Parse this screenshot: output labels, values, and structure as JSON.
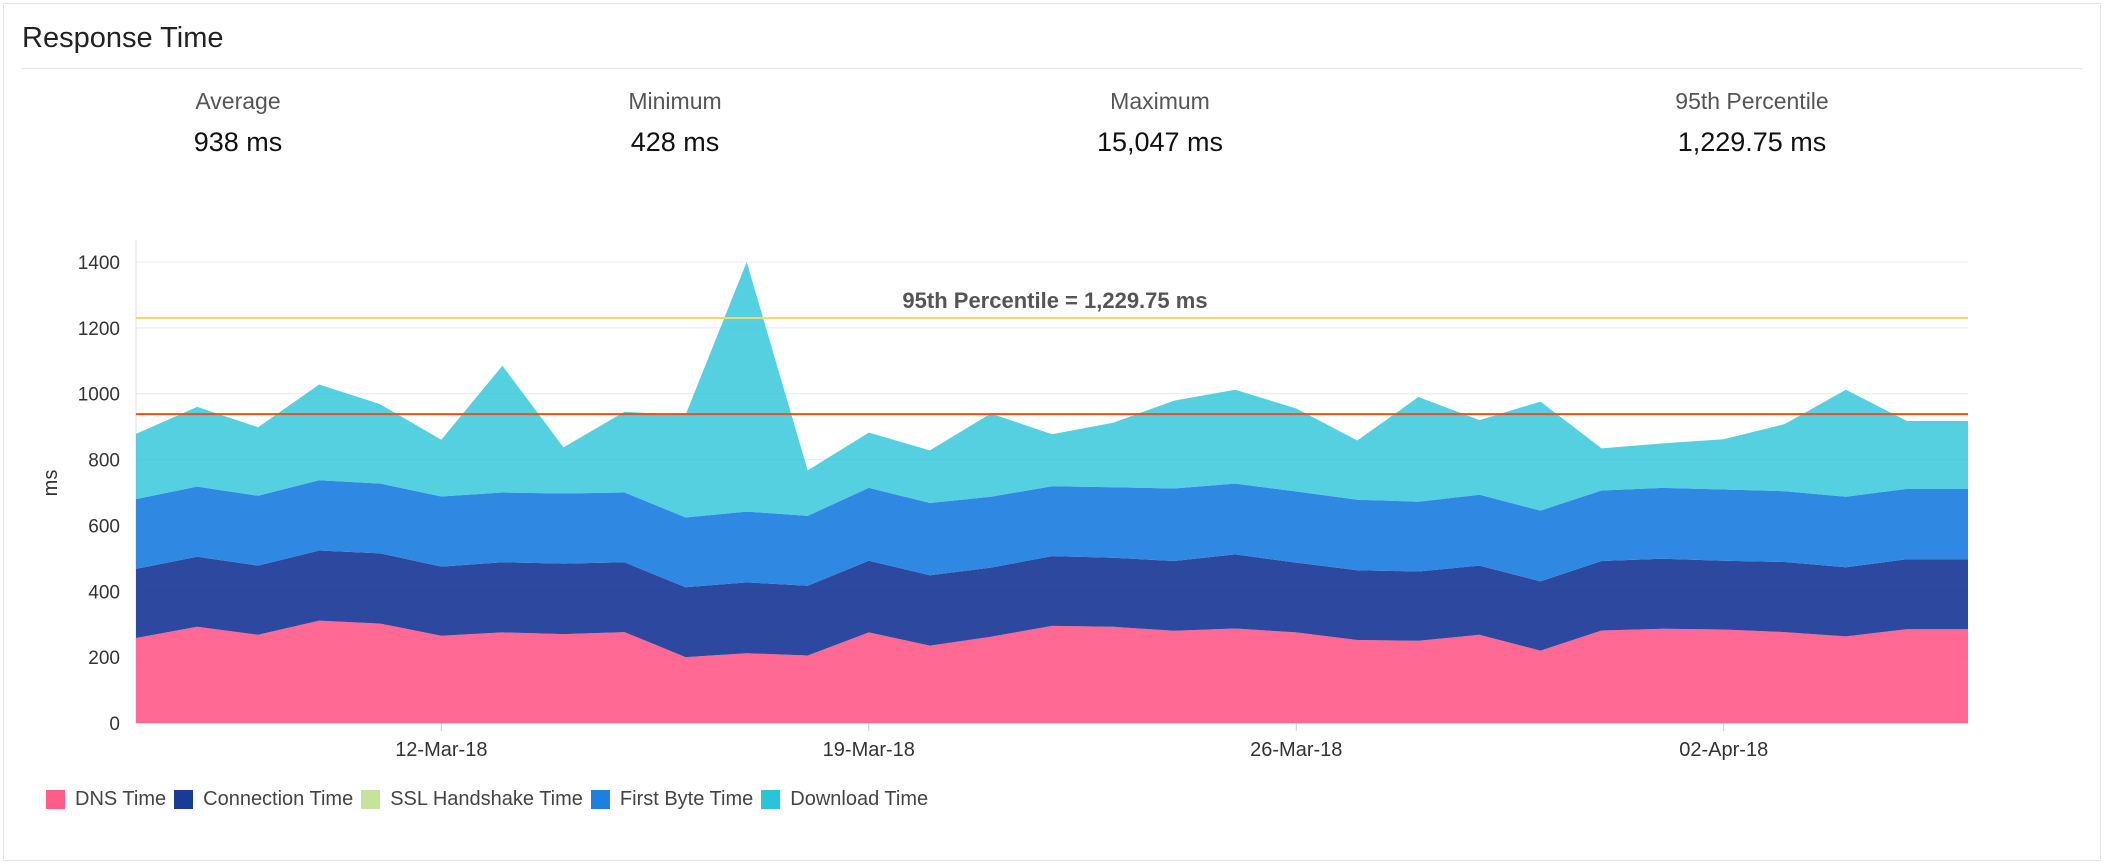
{
  "panel": {
    "title": "Response Time"
  },
  "stats": [
    {
      "label": "Average",
      "value": "938 ms"
    },
    {
      "label": "Minimum",
      "value": "428 ms"
    },
    {
      "label": "Maximum",
      "value": "15,047 ms"
    },
    {
      "label": "95th Percentile",
      "value": "1,229.75 ms"
    }
  ],
  "chart_data": {
    "type": "area",
    "stacked": true,
    "ylabel": "ms",
    "ylim": [
      0,
      1400
    ],
    "yticks": [
      "0",
      "200",
      "400",
      "600",
      "800",
      "1000",
      "1200",
      "1400"
    ],
    "xtick_labels": [
      "12-Mar-18",
      "19-Mar-18",
      "26-Mar-18",
      "02-Apr-18"
    ],
    "x_start": "2018-03-07",
    "x_end": "2018-04-06",
    "x": [
      "2018-03-07",
      "2018-03-08",
      "2018-03-09",
      "2018-03-10",
      "2018-03-11",
      "2018-03-12",
      "2018-03-13",
      "2018-03-14",
      "2018-03-15",
      "2018-03-16",
      "2018-03-17",
      "2018-03-18",
      "2018-03-19",
      "2018-03-20",
      "2018-03-21",
      "2018-03-22",
      "2018-03-23",
      "2018-03-24",
      "2018-03-25",
      "2018-03-26",
      "2018-03-27",
      "2018-03-28",
      "2018-03-29",
      "2018-03-30",
      "2018-03-31",
      "2018-04-01",
      "2018-04-02",
      "2018-04-03",
      "2018-04-04",
      "2018-04-05",
      "2018-04-06"
    ],
    "series": [
      {
        "name": "DNS Time",
        "color": "#ff5c8a",
        "values": [
          258,
          292,
          268,
          311,
          302,
          265,
          275,
          270,
          276,
          200,
          212,
          205,
          275,
          235,
          262,
          295,
          292,
          280,
          287,
          275,
          252,
          250,
          268,
          220,
          281,
          286,
          284,
          276,
          263,
          285,
          285
        ]
      },
      {
        "name": "Connection Time",
        "color": "#1a3a97",
        "values": [
          210,
          213,
          210,
          213,
          213,
          210,
          213,
          214,
          212,
          212,
          215,
          212,
          218,
          214,
          210,
          212,
          210,
          212,
          225,
          212,
          212,
          210,
          210,
          210,
          211,
          213,
          209,
          213,
          210,
          212,
          212
        ]
      },
      {
        "name": "SSL Handshake Time",
        "color": "#c6e39a",
        "values": [
          0,
          0,
          0,
          0,
          0,
          0,
          0,
          0,
          0,
          0,
          0,
          0,
          0,
          0,
          0,
          0,
          0,
          0,
          0,
          0,
          0,
          0,
          0,
          0,
          0,
          0,
          0,
          0,
          0,
          0,
          0
        ]
      },
      {
        "name": "First Byte Time",
        "color": "#1d7fe0",
        "values": [
          212,
          213,
          212,
          213,
          212,
          213,
          212,
          213,
          212,
          212,
          215,
          212,
          221,
          219,
          215,
          212,
          214,
          220,
          215,
          216,
          214,
          212,
          215,
          215,
          214,
          215,
          216,
          215,
          214,
          214,
          214
        ]
      },
      {
        "name": "Download Time",
        "color": "#29c4d8",
        "values": [
          198,
          242,
          208,
          291,
          241,
          172,
          385,
          140,
          245,
          312,
          758,
          138,
          168,
          160,
          253,
          158,
          196,
          267,
          285,
          252,
          180,
          318,
          227,
          331,
          128,
          135,
          153,
          204,
          325,
          206,
          206
        ]
      }
    ],
    "reference_lines": [
      {
        "name": "95th Percentile",
        "value": 1229.75,
        "color": "#f5d76e",
        "label": "95th Percentile = 1,229.75 ms"
      },
      {
        "name": "Average",
        "value": 938,
        "color": "#e8521a"
      }
    ],
    "grid": true,
    "legend_position": "bottom-left"
  }
}
